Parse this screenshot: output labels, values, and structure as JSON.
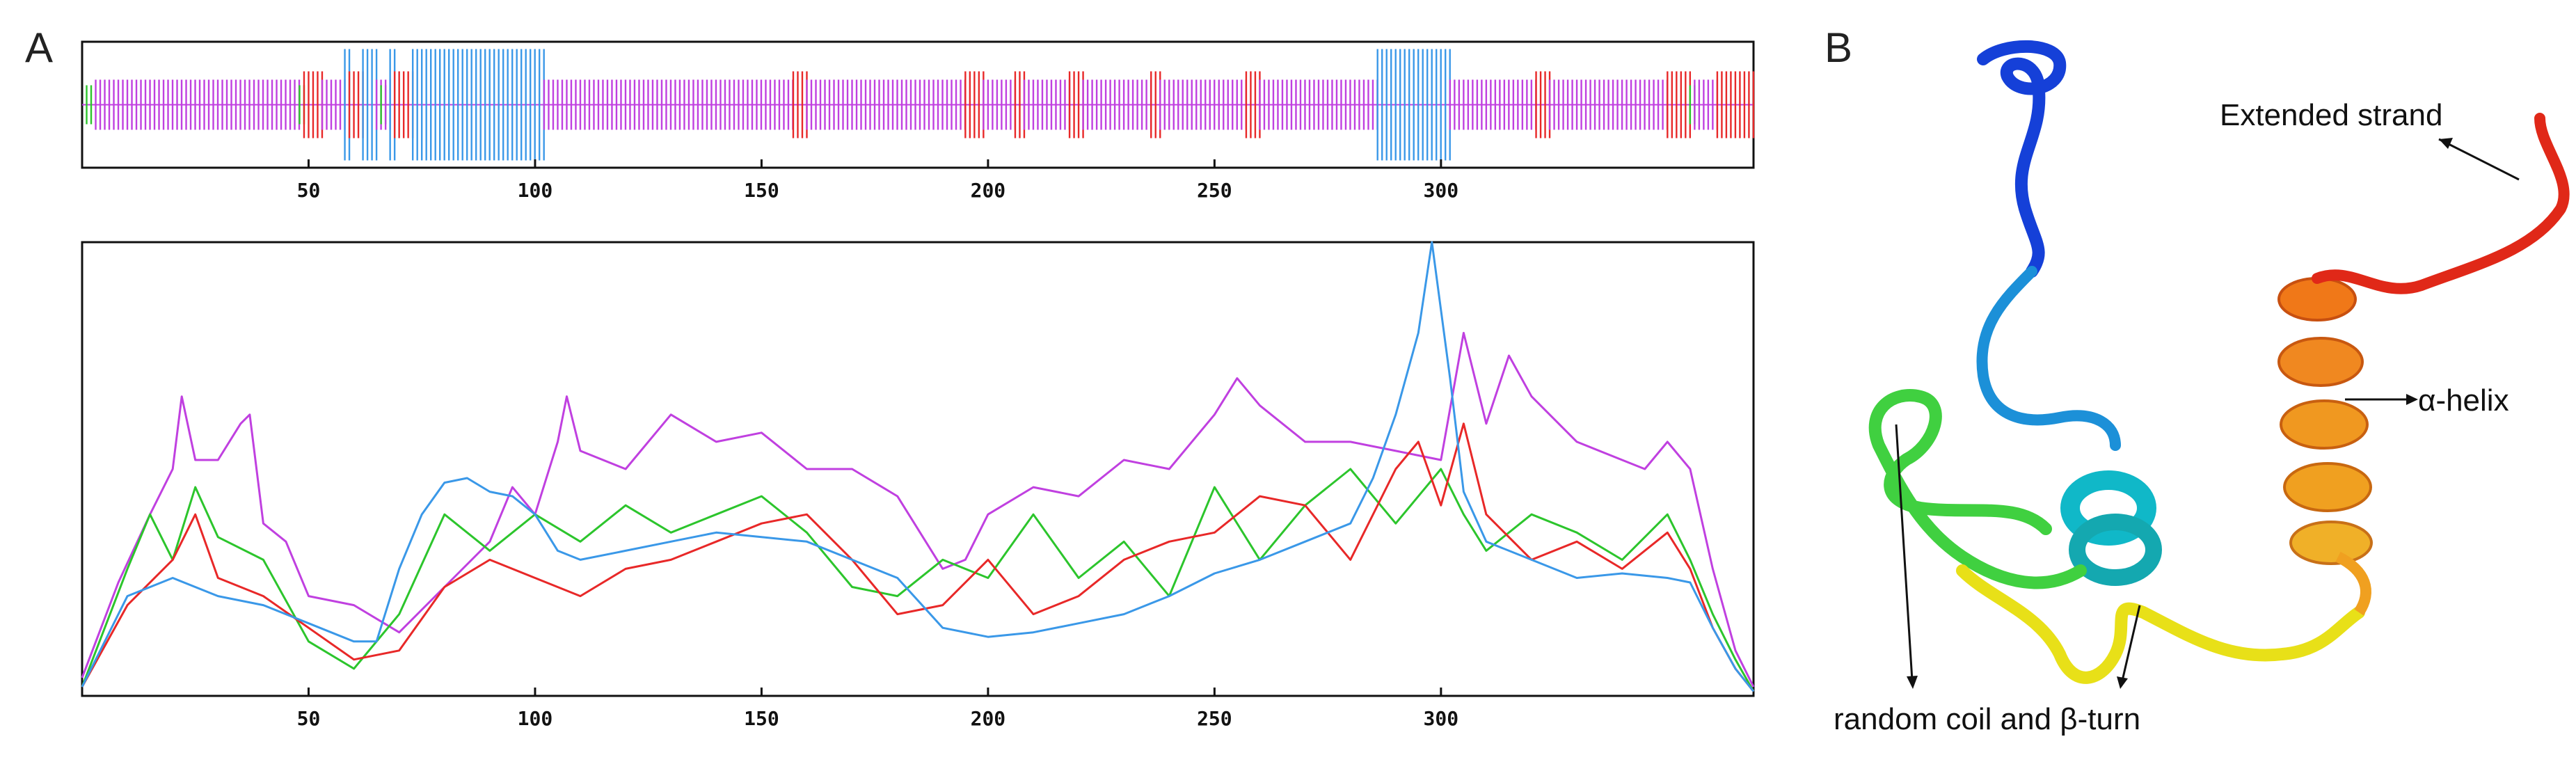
{
  "panels": {
    "a_label": "A",
    "b_label": "B"
  },
  "colors": {
    "alpha_helix": "#3a98e8",
    "extended_strand": "#e82828",
    "beta_turn": "#2cc52c",
    "random_coil": "#c040e0",
    "axis": "#111111"
  },
  "chart_data": [
    {
      "type": "bar",
      "description_kind": "secondary-structure-track",
      "xlim": [
        0,
        369
      ],
      "xticks": [
        "50",
        "100",
        "150",
        "200",
        "250",
        "300"
      ],
      "xtick_values": [
        50,
        100,
        150,
        200,
        250,
        300
      ],
      "segments": [
        {
          "start": 1,
          "end": 2,
          "state": "beta_turn"
        },
        {
          "start": 3,
          "end": 48,
          "state": "random_coil"
        },
        {
          "start": 48,
          "end": 49,
          "state": "beta_turn"
        },
        {
          "start": 49,
          "end": 53,
          "state": "extended_strand"
        },
        {
          "start": 53,
          "end": 58,
          "state": "random_coil"
        },
        {
          "start": 58,
          "end": 59,
          "state": "alpha_helix"
        },
        {
          "start": 59,
          "end": 62,
          "state": "extended_strand"
        },
        {
          "start": 62,
          "end": 65,
          "state": "alpha_helix"
        },
        {
          "start": 65,
          "end": 66,
          "state": "random_coil"
        },
        {
          "start": 66,
          "end": 67,
          "state": "beta_turn"
        },
        {
          "start": 67,
          "end": 68,
          "state": "random_coil"
        },
        {
          "start": 68,
          "end": 69,
          "state": "alpha_helix"
        },
        {
          "start": 69,
          "end": 73,
          "state": "extended_strand"
        },
        {
          "start": 73,
          "end": 102,
          "state": "alpha_helix"
        },
        {
          "start": 102,
          "end": 157,
          "state": "random_coil"
        },
        {
          "start": 157,
          "end": 160,
          "state": "extended_strand"
        },
        {
          "start": 160,
          "end": 195,
          "state": "random_coil"
        },
        {
          "start": 195,
          "end": 199,
          "state": "extended_strand"
        },
        {
          "start": 199,
          "end": 206,
          "state": "random_coil"
        },
        {
          "start": 206,
          "end": 208,
          "state": "extended_strand"
        },
        {
          "start": 208,
          "end": 218,
          "state": "random_coil"
        },
        {
          "start": 218,
          "end": 221,
          "state": "extended_strand"
        },
        {
          "start": 221,
          "end": 236,
          "state": "random_coil"
        },
        {
          "start": 236,
          "end": 238,
          "state": "extended_strand"
        },
        {
          "start": 238,
          "end": 257,
          "state": "random_coil"
        },
        {
          "start": 257,
          "end": 260,
          "state": "extended_strand"
        },
        {
          "start": 260,
          "end": 286,
          "state": "random_coil"
        },
        {
          "start": 286,
          "end": 302,
          "state": "alpha_helix"
        },
        {
          "start": 302,
          "end": 321,
          "state": "random_coil"
        },
        {
          "start": 321,
          "end": 324,
          "state": "extended_strand"
        },
        {
          "start": 324,
          "end": 350,
          "state": "random_coil"
        },
        {
          "start": 350,
          "end": 355,
          "state": "extended_strand"
        },
        {
          "start": 355,
          "end": 356,
          "state": "beta_turn"
        },
        {
          "start": 356,
          "end": 361,
          "state": "random_coil"
        },
        {
          "start": 361,
          "end": 369,
          "state": "extended_strand"
        }
      ]
    },
    {
      "type": "line",
      "description_kind": "state-probability-profile",
      "xlim": [
        0,
        369
      ],
      "ylim": [
        0,
        1
      ],
      "xticks": [
        "50",
        "100",
        "150",
        "200",
        "250",
        "300"
      ],
      "xtick_values": [
        50,
        100,
        150,
        200,
        250,
        300
      ],
      "series": [
        {
          "state": "alpha_helix",
          "x": [
            0,
            10,
            20,
            30,
            40,
            50,
            60,
            65,
            70,
            75,
            80,
            85,
            90,
            95,
            100,
            105,
            110,
            120,
            130,
            140,
            150,
            160,
            170,
            180,
            190,
            200,
            210,
            220,
            230,
            240,
            250,
            260,
            270,
            280,
            285,
            290,
            295,
            298,
            302,
            305,
            310,
            320,
            330,
            340,
            350,
            355,
            360,
            365,
            369
          ],
          "y": [
            0.02,
            0.22,
            0.26,
            0.22,
            0.2,
            0.16,
            0.12,
            0.12,
            0.28,
            0.4,
            0.47,
            0.48,
            0.45,
            0.44,
            0.4,
            0.32,
            0.3,
            0.32,
            0.34,
            0.36,
            0.35,
            0.34,
            0.3,
            0.26,
            0.15,
            0.13,
            0.14,
            0.16,
            0.18,
            0.22,
            0.27,
            0.3,
            0.34,
            0.38,
            0.48,
            0.62,
            0.8,
            1.0,
            0.7,
            0.45,
            0.34,
            0.3,
            0.26,
            0.27,
            0.26,
            0.25,
            0.15,
            0.06,
            0.01
          ]
        },
        {
          "state": "extended_strand",
          "x": [
            0,
            10,
            20,
            25,
            30,
            40,
            50,
            60,
            70,
            80,
            90,
            100,
            110,
            120,
            130,
            140,
            150,
            160,
            170,
            180,
            190,
            200,
            210,
            220,
            230,
            240,
            250,
            260,
            270,
            280,
            290,
            295,
            300,
            305,
            310,
            320,
            330,
            340,
            350,
            355,
            360,
            365,
            369
          ],
          "y": [
            0.02,
            0.2,
            0.3,
            0.4,
            0.26,
            0.22,
            0.15,
            0.08,
            0.1,
            0.24,
            0.3,
            0.26,
            0.22,
            0.28,
            0.3,
            0.34,
            0.38,
            0.4,
            0.3,
            0.18,
            0.2,
            0.3,
            0.18,
            0.22,
            0.3,
            0.34,
            0.36,
            0.44,
            0.42,
            0.3,
            0.5,
            0.56,
            0.42,
            0.6,
            0.4,
            0.3,
            0.34,
            0.28,
            0.36,
            0.28,
            0.15,
            0.06,
            0.01
          ]
        },
        {
          "state": "beta_turn",
          "x": [
            0,
            10,
            15,
            20,
            25,
            30,
            40,
            50,
            60,
            70,
            80,
            90,
            100,
            110,
            120,
            130,
            140,
            150,
            160,
            170,
            180,
            190,
            200,
            210,
            220,
            230,
            240,
            250,
            260,
            270,
            280,
            290,
            300,
            305,
            310,
            320,
            330,
            340,
            350,
            355,
            360,
            365,
            369
          ],
          "y": [
            0.02,
            0.28,
            0.4,
            0.3,
            0.46,
            0.35,
            0.3,
            0.12,
            0.06,
            0.18,
            0.4,
            0.32,
            0.4,
            0.34,
            0.42,
            0.36,
            0.4,
            0.44,
            0.36,
            0.24,
            0.22,
            0.3,
            0.26,
            0.4,
            0.26,
            0.34,
            0.22,
            0.46,
            0.3,
            0.42,
            0.5,
            0.38,
            0.5,
            0.4,
            0.32,
            0.4,
            0.36,
            0.3,
            0.4,
            0.3,
            0.18,
            0.08,
            0.01
          ]
        },
        {
          "state": "random_coil",
          "x": [
            0,
            8,
            15,
            20,
            22,
            25,
            30,
            35,
            37,
            40,
            45,
            50,
            60,
            70,
            80,
            90,
            95,
            100,
            105,
            107,
            110,
            120,
            130,
            140,
            150,
            160,
            170,
            180,
            190,
            195,
            200,
            210,
            220,
            230,
            240,
            250,
            255,
            260,
            270,
            280,
            290,
            300,
            305,
            310,
            315,
            320,
            330,
            340,
            345,
            350,
            355,
            360,
            365,
            369
          ],
          "y": [
            0.04,
            0.25,
            0.4,
            0.5,
            0.66,
            0.52,
            0.52,
            0.6,
            0.62,
            0.38,
            0.34,
            0.22,
            0.2,
            0.14,
            0.24,
            0.34,
            0.46,
            0.4,
            0.56,
            0.66,
            0.54,
            0.5,
            0.62,
            0.56,
            0.58,
            0.5,
            0.5,
            0.44,
            0.28,
            0.3,
            0.4,
            0.46,
            0.44,
            0.52,
            0.5,
            0.62,
            0.7,
            0.64,
            0.56,
            0.56,
            0.54,
            0.52,
            0.8,
            0.6,
            0.75,
            0.66,
            0.56,
            0.52,
            0.5,
            0.56,
            0.5,
            0.28,
            0.1,
            0.02
          ]
        }
      ]
    }
  ],
  "protein_figure": {
    "annotations": {
      "extended_strand": "Extended strand",
      "alpha_helix": "α-helix",
      "random_coil_beta_turn": "random coil and β-turn"
    }
  }
}
